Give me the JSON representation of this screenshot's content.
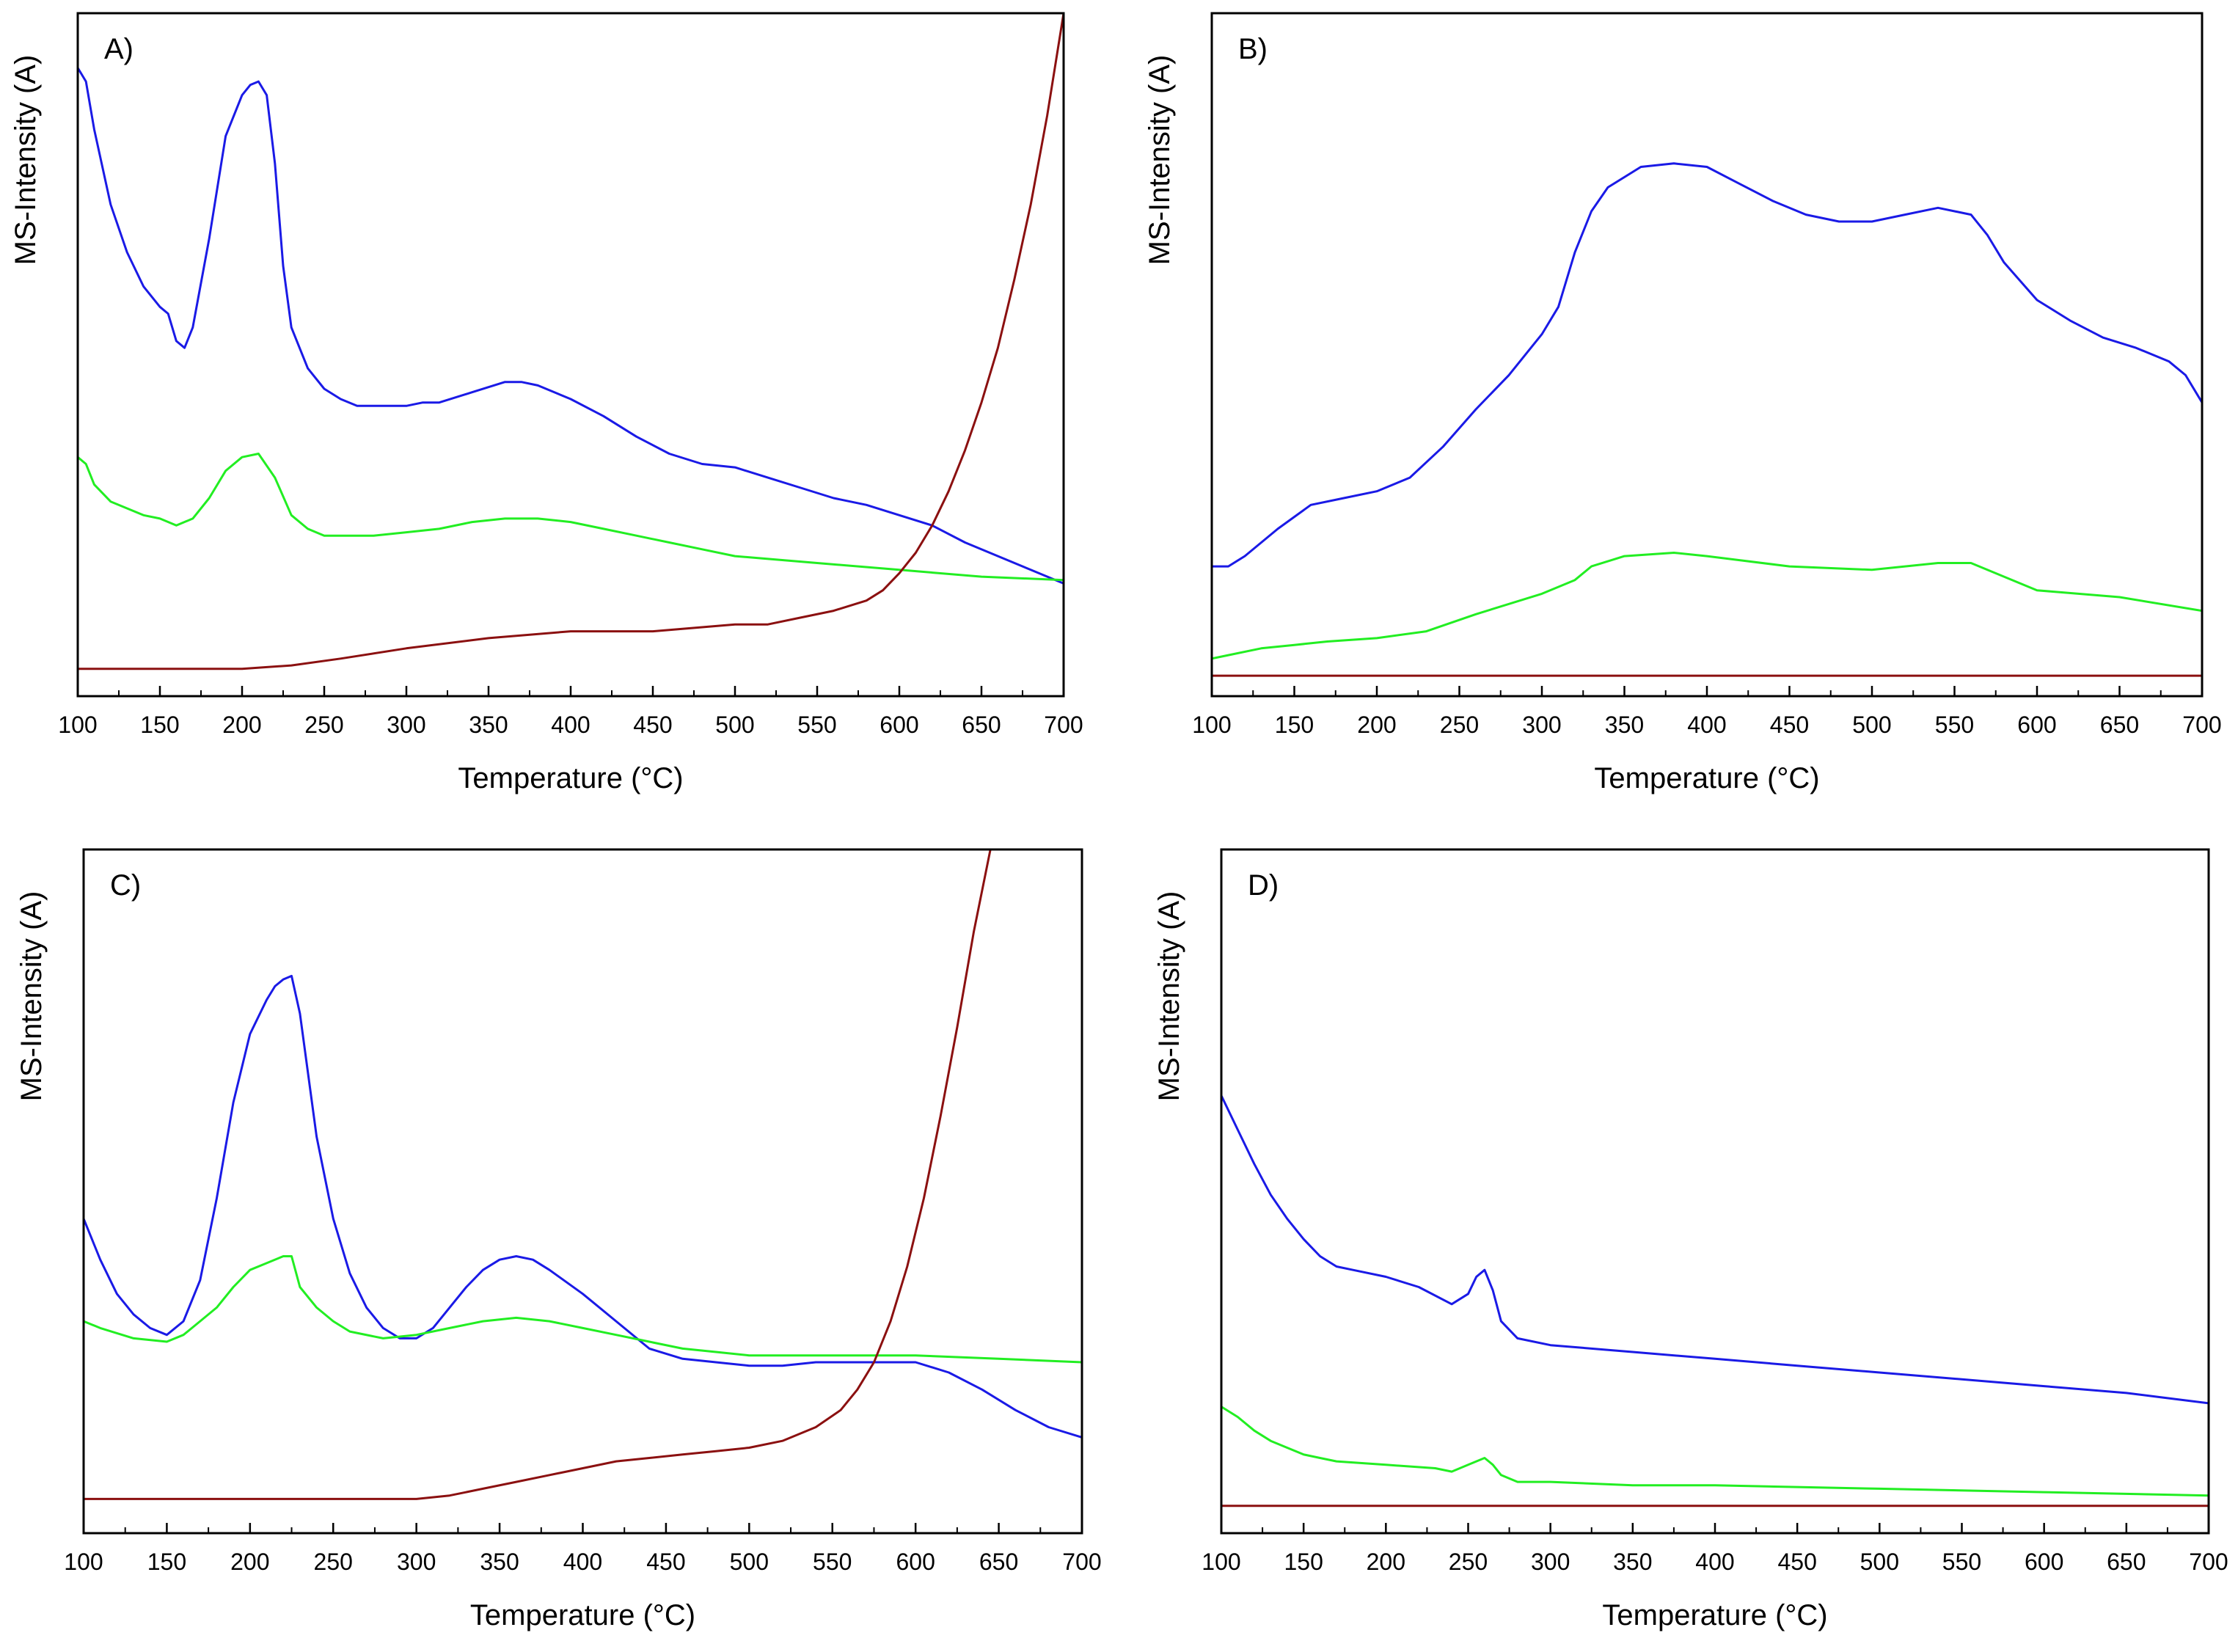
{
  "chart_data": [
    {
      "type": "line",
      "panel_label": "A)",
      "xlabel": "Temperature (°C)",
      "ylabel": "MS-Intensity (A)",
      "xlim": [
        100,
        700
      ],
      "ylim": [
        0,
        100
      ],
      "xticks": [
        "100",
        "150",
        "200",
        "250",
        "300",
        "350",
        "400",
        "450",
        "500",
        "550",
        "600",
        "650",
        "700"
      ],
      "series": [
        {
          "name": "blue",
          "color": "#1a1ae6",
          "x": [
            100,
            105,
            110,
            120,
            130,
            140,
            150,
            155,
            160,
            165,
            170,
            180,
            190,
            200,
            205,
            210,
            215,
            220,
            225,
            230,
            240,
            250,
            260,
            270,
            280,
            300,
            310,
            320,
            340,
            360,
            370,
            380,
            400,
            420,
            440,
            460,
            480,
            500,
            520,
            540,
            560,
            580,
            600,
            620,
            640,
            660,
            680,
            700
          ],
          "y": [
            92,
            90,
            83,
            72,
            65,
            60,
            57,
            56,
            52,
            51,
            54,
            67,
            82,
            88,
            89.5,
            90,
            88,
            78,
            63,
            54,
            48,
            45,
            43.5,
            42.5,
            42.5,
            42.5,
            43,
            43,
            44.5,
            46,
            46,
            45.5,
            43.5,
            41,
            38,
            35.5,
            34,
            33.5,
            32,
            30.5,
            29,
            28,
            26.5,
            25,
            22.5,
            20.5,
            18.5,
            16.5
          ]
        },
        {
          "name": "green",
          "color": "#22ee22",
          "x": [
            100,
            105,
            110,
            120,
            130,
            140,
            150,
            160,
            170,
            180,
            190,
            200,
            210,
            220,
            230,
            240,
            250,
            260,
            280,
            300,
            320,
            340,
            360,
            380,
            400,
            420,
            440,
            460,
            480,
            500,
            550,
            600,
            650,
            700
          ],
          "y": [
            35,
            34,
            31,
            28.5,
            27.5,
            26.5,
            26,
            25,
            26,
            29,
            33,
            35,
            35.5,
            32,
            26.5,
            24.5,
            23.5,
            23.5,
            23.5,
            24,
            24.5,
            25.5,
            26,
            26,
            25.5,
            24.5,
            23.5,
            22.5,
            21.5,
            20.5,
            19.5,
            18.5,
            17.5,
            17
          ]
        },
        {
          "name": "dark-red",
          "color": "#8b1010",
          "x": [
            100,
            150,
            200,
            230,
            260,
            300,
            350,
            400,
            450,
            500,
            520,
            540,
            560,
            580,
            590,
            600,
            610,
            620,
            630,
            640,
            650,
            660,
            670,
            680,
            690,
            700
          ],
          "y": [
            4,
            4,
            4,
            4.5,
            5.5,
            7,
            8.5,
            9.5,
            9.5,
            10.5,
            10.5,
            11.5,
            12.5,
            14,
            15.5,
            18,
            21,
            25,
            30,
            36,
            43,
            51,
            61,
            72,
            85,
            100
          ]
        }
      ]
    },
    {
      "type": "line",
      "panel_label": "B)",
      "xlabel": "Temperature (°C)",
      "ylabel": "MS-Intensity (A)",
      "xlim": [
        100,
        700
      ],
      "ylim": [
        0,
        100
      ],
      "xticks": [
        "100",
        "150",
        "200",
        "250",
        "300",
        "350",
        "400",
        "450",
        "500",
        "550",
        "600",
        "650",
        "700"
      ],
      "series": [
        {
          "name": "blue",
          "color": "#1a1ae6",
          "x": [
            100,
            110,
            120,
            140,
            160,
            180,
            200,
            220,
            240,
            260,
            280,
            300,
            310,
            320,
            330,
            340,
            360,
            380,
            400,
            420,
            440,
            460,
            480,
            500,
            520,
            540,
            560,
            570,
            580,
            600,
            620,
            640,
            660,
            680,
            690,
            700
          ],
          "y": [
            19,
            19,
            20.5,
            24.5,
            28,
            29,
            30,
            32,
            36.5,
            42,
            47,
            53,
            57,
            65,
            71,
            74.5,
            77.5,
            78,
            77.5,
            75,
            72.5,
            70.5,
            69.5,
            69.5,
            70.5,
            71.5,
            70.5,
            67.5,
            63.5,
            58,
            55,
            52.5,
            51,
            49,
            47,
            43
          ]
        },
        {
          "name": "green",
          "color": "#22ee22",
          "x": [
            100,
            110,
            130,
            150,
            170,
            200,
            230,
            260,
            300,
            320,
            330,
            350,
            380,
            400,
            450,
            500,
            540,
            560,
            580,
            600,
            650,
            700
          ],
          "y": [
            5.5,
            6,
            7,
            7.5,
            8,
            8.5,
            9.5,
            12,
            15,
            17,
            19,
            20.5,
            21,
            20.5,
            19,
            18.5,
            19.5,
            19.5,
            17.5,
            15.5,
            14.5,
            12.5
          ]
        },
        {
          "name": "dark-red",
          "color": "#8b1010",
          "x": [
            100,
            700
          ],
          "y": [
            3,
            3
          ]
        }
      ]
    },
    {
      "type": "line",
      "panel_label": "C)",
      "xlabel": "Temperature (°C)",
      "ylabel": "MS-Intensity (A)",
      "xlim": [
        100,
        700
      ],
      "ylim": [
        0,
        100
      ],
      "xticks": [
        "100",
        "150",
        "200",
        "250",
        "300",
        "350",
        "400",
        "450",
        "500",
        "550",
        "600",
        "650",
        "700"
      ],
      "series": [
        {
          "name": "blue",
          "color": "#1a1ae6",
          "x": [
            100,
            110,
            120,
            130,
            140,
            150,
            160,
            170,
            180,
            190,
            200,
            210,
            215,
            220,
            225,
            230,
            240,
            250,
            260,
            270,
            280,
            290,
            300,
            310,
            320,
            330,
            340,
            350,
            360,
            370,
            380,
            400,
            420,
            440,
            460,
            480,
            500,
            520,
            540,
            560,
            580,
            600,
            620,
            640,
            660,
            680,
            700
          ],
          "y": [
            46,
            40,
            35,
            32,
            30,
            29,
            31,
            37,
            49,
            63,
            73,
            78,
            80,
            81,
            81.5,
            76,
            58,
            46,
            38,
            33,
            30,
            28.5,
            28.5,
            30,
            33,
            36,
            38.5,
            40,
            40.5,
            40,
            38.5,
            35,
            31,
            27,
            25.5,
            25,
            24.5,
            24.5,
            25,
            25,
            25,
            25,
            23.5,
            21,
            18,
            15.5,
            14
          ]
        },
        {
          "name": "green",
          "color": "#22ee22",
          "x": [
            100,
            110,
            130,
            150,
            160,
            170,
            180,
            190,
            200,
            210,
            220,
            225,
            230,
            240,
            250,
            260,
            280,
            300,
            320,
            340,
            360,
            380,
            400,
            420,
            440,
            460,
            480,
            500,
            550,
            600,
            650,
            700
          ],
          "y": [
            31,
            30,
            28.5,
            28,
            29,
            31,
            33,
            36,
            38.5,
            39.5,
            40.5,
            40.5,
            36,
            33,
            31,
            29.5,
            28.5,
            29,
            30,
            31,
            31.5,
            31,
            30,
            29,
            28,
            27,
            26.5,
            26,
            26,
            26,
            25.5,
            25
          ]
        },
        {
          "name": "dark-red",
          "color": "#8b1010",
          "x": [
            100,
            200,
            300,
            320,
            340,
            360,
            380,
            400,
            420,
            440,
            460,
            480,
            500,
            520,
            540,
            555,
            565,
            575,
            585,
            595,
            605,
            615,
            625,
            635,
            645
          ],
          "y": [
            5,
            5,
            5,
            5.5,
            6.5,
            7.5,
            8.5,
            9.5,
            10.5,
            11,
            11.5,
            12,
            12.5,
            13.5,
            15.5,
            18,
            21,
            25,
            31,
            39,
            49,
            61,
            74,
            88,
            100
          ]
        }
      ]
    },
    {
      "type": "line",
      "panel_label": "D)",
      "xlabel": "Temperature (°C)",
      "ylabel": "MS-Intensity (A)",
      "xlim": [
        100,
        700
      ],
      "ylim": [
        0,
        100
      ],
      "xticks": [
        "100",
        "150",
        "200",
        "250",
        "300",
        "350",
        "400",
        "450",
        "500",
        "550",
        "600",
        "650",
        "700"
      ],
      "series": [
        {
          "name": "blue",
          "color": "#1a1ae6",
          "x": [
            100,
            110,
            120,
            130,
            140,
            150,
            160,
            170,
            180,
            200,
            220,
            240,
            250,
            255,
            260,
            265,
            270,
            280,
            300,
            350,
            400,
            450,
            500,
            550,
            600,
            650,
            700
          ],
          "y": [
            64,
            59,
            54,
            49.5,
            46,
            43,
            40.5,
            39,
            38.5,
            37.5,
            36,
            33.5,
            35,
            37.5,
            38.5,
            35.5,
            31,
            28.5,
            27.5,
            26.5,
            25.5,
            24.5,
            23.5,
            22.5,
            21.5,
            20.5,
            19
          ]
        },
        {
          "name": "green",
          "color": "#22ee22",
          "x": [
            100,
            110,
            120,
            130,
            140,
            150,
            160,
            170,
            200,
            230,
            240,
            250,
            255,
            260,
            265,
            270,
            280,
            300,
            350,
            400,
            500,
            600,
            700
          ],
          "y": [
            18.5,
            17,
            15,
            13.5,
            12.5,
            11.5,
            11,
            10.5,
            10,
            9.5,
            9,
            10,
            10.5,
            11,
            10,
            8.5,
            7.5,
            7.5,
            7,
            7,
            6.5,
            6,
            5.5
          ]
        },
        {
          "name": "dark-red",
          "color": "#8b1010",
          "x": [
            100,
            700
          ],
          "y": [
            4,
            4
          ]
        }
      ]
    }
  ]
}
